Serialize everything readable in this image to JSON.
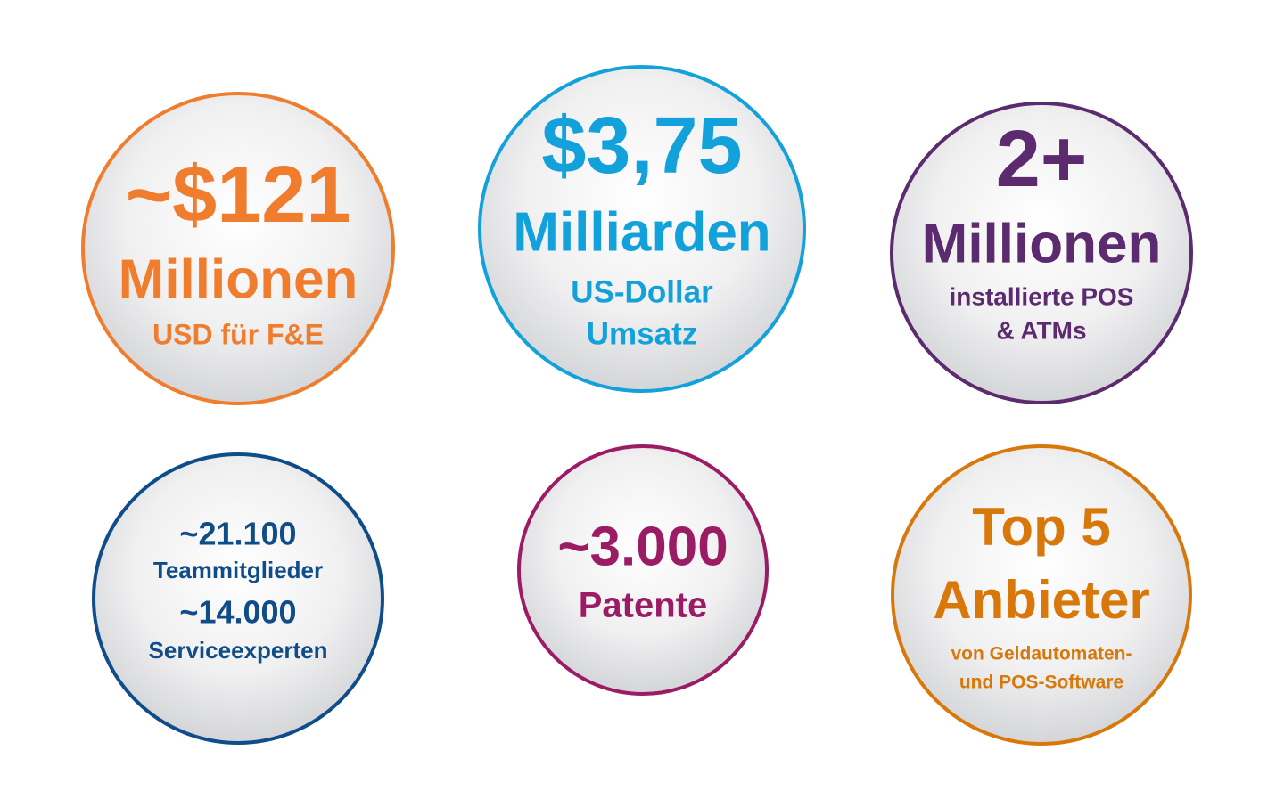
{
  "circles": [
    {
      "lines": [
        "~$121",
        "Millionen",
        "USD für F&E"
      ]
    },
    {
      "lines": [
        "$3,75",
        "Milliarden",
        "US-Dollar",
        "Umsatz"
      ]
    },
    {
      "lines": [
        "2+",
        "Millionen",
        "installierte POS",
        "& ATMs"
      ]
    },
    {
      "lines": [
        "~21.100",
        "Teammitglieder",
        "~14.000",
        "Serviceexperten"
      ]
    },
    {
      "lines": [
        "~3.000",
        "Patente"
      ]
    },
    {
      "lines": [
        "Top 5",
        "Anbieter",
        "von Geldautomaten-",
        "und POS-Software"
      ]
    }
  ]
}
